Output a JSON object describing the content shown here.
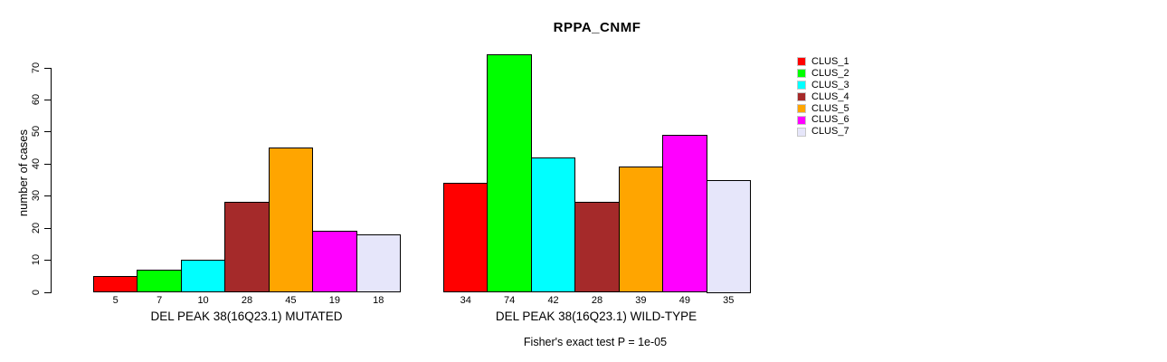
{
  "chart_data": {
    "type": "bar",
    "title": "RPPA_CNMF",
    "ylabel": "number of cases",
    "ylim": [
      0,
      70
    ],
    "yticks": [
      0,
      10,
      20,
      30,
      40,
      50,
      60,
      70
    ],
    "grid": false,
    "legend_position": "right-top",
    "series_names": [
      "CLUS_1",
      "CLUS_2",
      "CLUS_3",
      "CLUS_4",
      "CLUS_5",
      "CLUS_6",
      "CLUS_7"
    ],
    "colors": [
      "#ff0000",
      "#00ff00",
      "#00ffff",
      "#a52a2a",
      "#ffa500",
      "#ff00ff",
      "#e6e6fa"
    ],
    "groups": [
      {
        "label": "DEL PEAK 38(16Q23.1) MUTATED",
        "values": [
          5,
          7,
          10,
          28,
          45,
          19,
          18
        ]
      },
      {
        "label": "DEL PEAK 38(16Q23.1) WILD-TYPE",
        "values": [
          34,
          74,
          42,
          28,
          39,
          49,
          35
        ]
      }
    ],
    "bar_value_labels": [
      [
        "5",
        "7",
        "10",
        "28",
        "45",
        "19",
        "18"
      ],
      [
        "34",
        "74",
        "42",
        "28",
        "39",
        "49",
        "35"
      ]
    ],
    "annotation": "Fisher's exact test P = 1e-05"
  },
  "legend": {
    "items": [
      {
        "label": "CLUS_1",
        "color": "#ff0000"
      },
      {
        "label": "CLUS_2",
        "color": "#00ff00"
      },
      {
        "label": "CLUS_3",
        "color": "#00ffff"
      },
      {
        "label": "CLUS_4",
        "color": "#a52a2a"
      },
      {
        "label": "CLUS_5",
        "color": "#ffa500"
      },
      {
        "label": "CLUS_6",
        "color": "#ff00ff"
      },
      {
        "label": "CLUS_7",
        "color": "#e6e6fa"
      }
    ]
  }
}
